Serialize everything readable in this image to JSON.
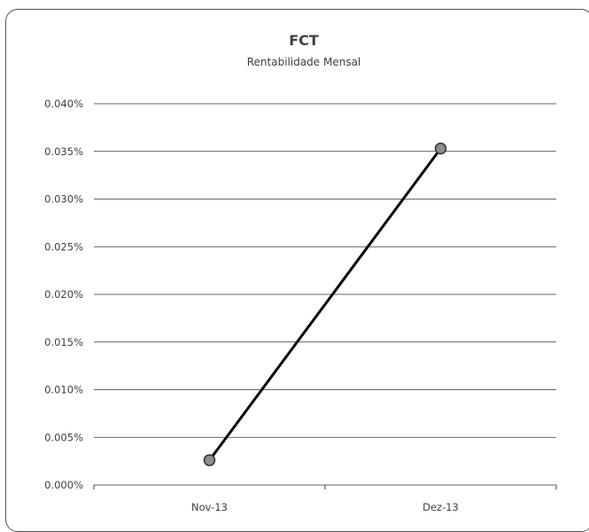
{
  "chart_data": {
    "type": "line",
    "title": "FCT",
    "subtitle": "Rentabilidade Mensal",
    "xlabel": "",
    "ylabel": "",
    "categories": [
      "Nov-13",
      "Dez-13"
    ],
    "series": [
      {
        "values": [
          0.0026,
          0.0353
        ]
      }
    ],
    "ylim": [
      0,
      0.04
    ],
    "ytick_step": 0.005,
    "ytick_labels": [
      "0.000%",
      "0.005%",
      "0.010%",
      "0.015%",
      "0.020%",
      "0.025%",
      "0.030%",
      "0.035%",
      "0.040%"
    ],
    "grid": true,
    "legend": "none",
    "colors": {
      "line": "#000000",
      "marker_fill": "#8c8c8c",
      "marker_stroke": "#333333",
      "grid": "#333333"
    }
  }
}
